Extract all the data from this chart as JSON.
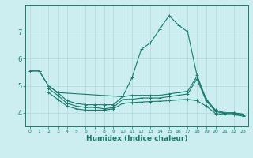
{
  "xlabel": "Humidex (Indice chaleur)",
  "bg_color": "#cceef0",
  "line_color": "#1a7a6e",
  "grid_color": "#b0d8d8",
  "xlim": [
    -0.5,
    23.5
  ],
  "ylim": [
    3.5,
    8.0
  ],
  "yticks": [
    4,
    5,
    6,
    7
  ],
  "xticks": [
    0,
    1,
    2,
    3,
    4,
    5,
    6,
    7,
    8,
    9,
    10,
    11,
    12,
    13,
    14,
    15,
    16,
    17,
    18,
    19,
    20,
    21,
    22,
    23
  ],
  "lines": [
    {
      "x": [
        0,
        1,
        2,
        3,
        4,
        5,
        6,
        7,
        8,
        9,
        10,
        11,
        12,
        13,
        14,
        15,
        16,
        17,
        18,
        19,
        20,
        21,
        22,
        23
      ],
      "y": [
        5.55,
        5.55,
        5.0,
        4.75,
        4.45,
        4.35,
        4.3,
        4.3,
        4.3,
        4.3,
        4.6,
        5.3,
        6.35,
        6.6,
        7.1,
        7.6,
        7.25,
        7.0,
        5.4,
        4.5,
        4.1,
        4.0,
        4.0,
        3.95
      ]
    },
    {
      "x": [
        0,
        1,
        2,
        3,
        10,
        11,
        12,
        13,
        14,
        15,
        16,
        17,
        18,
        19,
        20,
        21,
        22,
        23
      ],
      "y": [
        5.55,
        5.55,
        5.0,
        4.75,
        4.6,
        4.65,
        4.65,
        4.65,
        4.65,
        4.7,
        4.75,
        4.8,
        5.35,
        4.5,
        4.1,
        4.0,
        4.0,
        3.95
      ]
    },
    {
      "x": [
        2,
        3,
        4,
        5,
        6,
        7,
        8,
        9,
        10,
        11,
        12,
        13,
        14,
        15,
        16,
        17,
        18,
        19,
        20,
        21,
        22,
        23
      ],
      "y": [
        4.9,
        4.65,
        4.35,
        4.25,
        4.2,
        4.2,
        4.15,
        4.2,
        4.5,
        4.5,
        4.55,
        4.55,
        4.55,
        4.6,
        4.65,
        4.7,
        5.25,
        4.45,
        4.05,
        3.97,
        3.97,
        3.92
      ]
    },
    {
      "x": [
        2,
        3,
        4,
        5,
        6,
        7,
        8,
        9,
        10,
        11,
        12,
        13,
        14,
        15,
        16,
        17,
        18,
        19,
        20,
        21,
        22,
        23
      ],
      "y": [
        4.75,
        4.5,
        4.25,
        4.15,
        4.1,
        4.1,
        4.1,
        4.15,
        4.35,
        4.38,
        4.4,
        4.42,
        4.43,
        4.45,
        4.48,
        4.5,
        4.45,
        4.25,
        3.98,
        3.93,
        3.93,
        3.88
      ]
    }
  ]
}
